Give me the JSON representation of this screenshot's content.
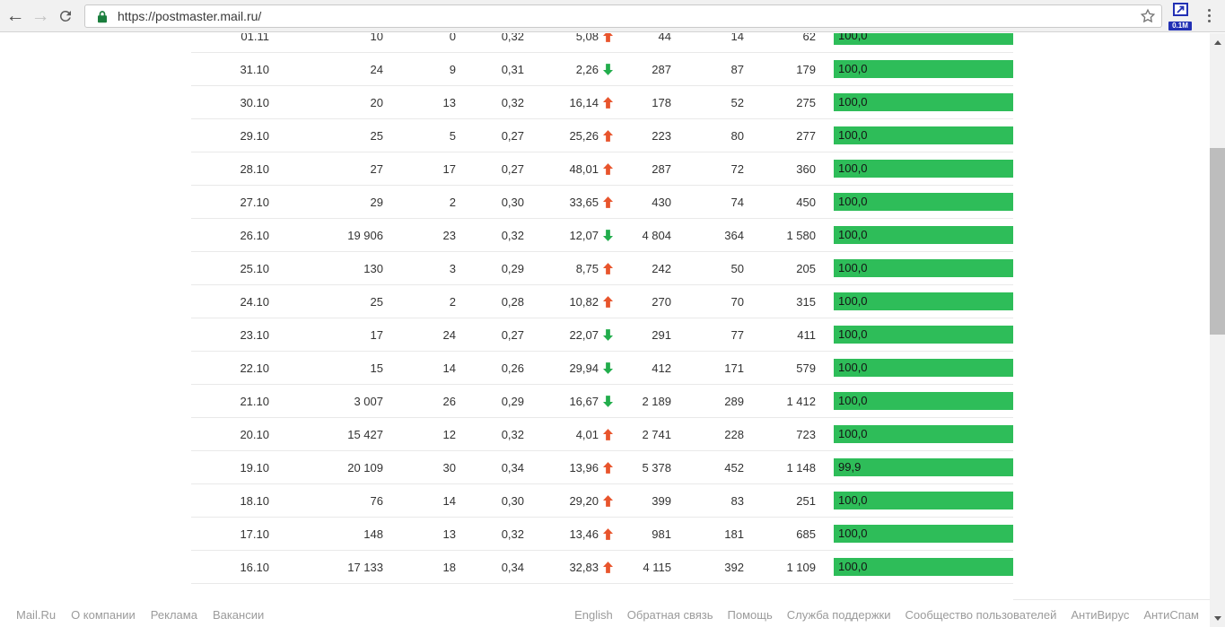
{
  "browser": {
    "url": "https://postmaster.mail.ru/",
    "extension_badge": "0.1M"
  },
  "colors": {
    "bar_green": "#2ebd59",
    "arrow_up": "#e8542c",
    "arrow_down": "#22ad4c",
    "lock_green": "#1a7e3d",
    "badge_blue": "#2230b4"
  },
  "table": {
    "rows": [
      {
        "date": "01.11",
        "v1": "10",
        "v2": "0",
        "v3": "0,32",
        "delta": "5,08",
        "trend": "up",
        "v4": "44",
        "v5": "14",
        "v6": "62",
        "bar_label": "100,0",
        "bar_pct": 100
      },
      {
        "date": "31.10",
        "v1": "24",
        "v2": "9",
        "v3": "0,31",
        "delta": "2,26",
        "trend": "down",
        "v4": "287",
        "v5": "87",
        "v6": "179",
        "bar_label": "100,0",
        "bar_pct": 100
      },
      {
        "date": "30.10",
        "v1": "20",
        "v2": "13",
        "v3": "0,32",
        "delta": "16,14",
        "trend": "up",
        "v4": "178",
        "v5": "52",
        "v6": "275",
        "bar_label": "100,0",
        "bar_pct": 100
      },
      {
        "date": "29.10",
        "v1": "25",
        "v2": "5",
        "v3": "0,27",
        "delta": "25,26",
        "trend": "up",
        "v4": "223",
        "v5": "80",
        "v6": "277",
        "bar_label": "100,0",
        "bar_pct": 100
      },
      {
        "date": "28.10",
        "v1": "27",
        "v2": "17",
        "v3": "0,27",
        "delta": "48,01",
        "trend": "up",
        "v4": "287",
        "v5": "72",
        "v6": "360",
        "bar_label": "100,0",
        "bar_pct": 100
      },
      {
        "date": "27.10",
        "v1": "29",
        "v2": "2",
        "v3": "0,30",
        "delta": "33,65",
        "trend": "up",
        "v4": "430",
        "v5": "74",
        "v6": "450",
        "bar_label": "100,0",
        "bar_pct": 100
      },
      {
        "date": "26.10",
        "v1": "19 906",
        "v2": "23",
        "v3": "0,32",
        "delta": "12,07",
        "trend": "down",
        "v4": "4 804",
        "v5": "364",
        "v6": "1 580",
        "bar_label": "100,0",
        "bar_pct": 100
      },
      {
        "date": "25.10",
        "v1": "130",
        "v2": "3",
        "v3": "0,29",
        "delta": "8,75",
        "trend": "up",
        "v4": "242",
        "v5": "50",
        "v6": "205",
        "bar_label": "100,0",
        "bar_pct": 100
      },
      {
        "date": "24.10",
        "v1": "25",
        "v2": "2",
        "v3": "0,28",
        "delta": "10,82",
        "trend": "up",
        "v4": "270",
        "v5": "70",
        "v6": "315",
        "bar_label": "100,0",
        "bar_pct": 100
      },
      {
        "date": "23.10",
        "v1": "17",
        "v2": "24",
        "v3": "0,27",
        "delta": "22,07",
        "trend": "down",
        "v4": "291",
        "v5": "77",
        "v6": "411",
        "bar_label": "100,0",
        "bar_pct": 100
      },
      {
        "date": "22.10",
        "v1": "15",
        "v2": "14",
        "v3": "0,26",
        "delta": "29,94",
        "trend": "down",
        "v4": "412",
        "v5": "171",
        "v6": "579",
        "bar_label": "100,0",
        "bar_pct": 100
      },
      {
        "date": "21.10",
        "v1": "3 007",
        "v2": "26",
        "v3": "0,29",
        "delta": "16,67",
        "trend": "down",
        "v4": "2 189",
        "v5": "289",
        "v6": "1 412",
        "bar_label": "100,0",
        "bar_pct": 100
      },
      {
        "date": "20.10",
        "v1": "15 427",
        "v2": "12",
        "v3": "0,32",
        "delta": "4,01",
        "trend": "up",
        "v4": "2 741",
        "v5": "228",
        "v6": "723",
        "bar_label": "100,0",
        "bar_pct": 100
      },
      {
        "date": "19.10",
        "v1": "20 109",
        "v2": "30",
        "v3": "0,34",
        "delta": "13,96",
        "trend": "up",
        "v4": "5 378",
        "v5": "452",
        "v6": "1 148",
        "bar_label": "99,9",
        "bar_pct": 99.9
      },
      {
        "date": "18.10",
        "v1": "76",
        "v2": "14",
        "v3": "0,30",
        "delta": "29,20",
        "trend": "up",
        "v4": "399",
        "v5": "83",
        "v6": "251",
        "bar_label": "100,0",
        "bar_pct": 100
      },
      {
        "date": "17.10",
        "v1": "148",
        "v2": "13",
        "v3": "0,32",
        "delta": "13,46",
        "trend": "up",
        "v4": "981",
        "v5": "181",
        "v6": "685",
        "bar_label": "100,0",
        "bar_pct": 100
      },
      {
        "date": "16.10",
        "v1": "17 133",
        "v2": "18",
        "v3": "0,34",
        "delta": "32,83",
        "trend": "up",
        "v4": "4 115",
        "v5": "392",
        "v6": "1 109",
        "bar_label": "100,0",
        "bar_pct": 100
      }
    ]
  },
  "footer": {
    "left": [
      "Mail.Ru",
      "О компании",
      "Реклама",
      "Вакансии"
    ],
    "right": [
      "English",
      "Обратная связь",
      "Помощь",
      "Служба поддержки",
      "Сообщество пользователей",
      "АнтиВирус",
      "АнтиСпам"
    ]
  }
}
